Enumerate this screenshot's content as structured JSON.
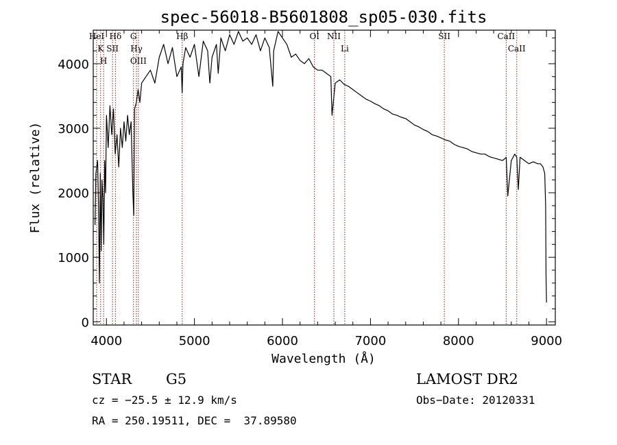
{
  "chart_data": {
    "type": "line",
    "title": "spec-56018-B5601808_sp05-030.fits",
    "xlabel": "Wavelength (Å)",
    "ylabel": "Flux (relative)",
    "xlim": [
      3850,
      9100
    ],
    "ylim": [
      -50,
      4520
    ],
    "x_ticks": [
      4000,
      5000,
      6000,
      7000,
      8000,
      9000
    ],
    "y_ticks": [
      0,
      1000,
      2000,
      3000,
      4000
    ],
    "grid": false,
    "series": [
      {
        "x": [
          3870,
          3880,
          3890,
          3900,
          3910,
          3920,
          3930,
          3940,
          3950,
          3960,
          3970,
          3980,
          3990,
          4000,
          4020,
          4040,
          4060,
          4080,
          4100,
          4120,
          4140,
          4160,
          4180,
          4200,
          4220,
          4240,
          4260,
          4280,
          4300,
          4310,
          4320,
          4340,
          4360,
          4380,
          4400,
          4450,
          4500,
          4550,
          4600,
          4650,
          4700,
          4750,
          4800,
          4850,
          4860,
          4870,
          4900,
          4950,
          5000,
          5050,
          5100,
          5150,
          5175,
          5200,
          5250,
          5270,
          5300,
          5350,
          5400,
          5450,
          5500,
          5550,
          5600,
          5650,
          5700,
          5750,
          5800,
          5850,
          5890,
          5900,
          5950,
          6000,
          6050,
          6100,
          6150,
          6200,
          6250,
          6300,
          6350,
          6400,
          6450,
          6500,
          6550,
          6563,
          6600,
          6650,
          6700,
          6750,
          6800,
          6850,
          6900,
          6950,
          7000,
          7050,
          7100,
          7150,
          7200,
          7250,
          7300,
          7350,
          7400,
          7450,
          7500,
          7550,
          7600,
          7650,
          7700,
          7750,
          7800,
          7850,
          7900,
          7950,
          8000,
          8050,
          8100,
          8150,
          8200,
          8250,
          8300,
          8350,
          8400,
          8450,
          8498,
          8520,
          8542,
          8560,
          8600,
          8640,
          8662,
          8680,
          8700,
          8750,
          8800,
          8850,
          8900,
          8930,
          8960,
          8980,
          8990,
          8995,
          9000
        ],
        "y": [
          1500,
          2300,
          2400,
          2500,
          1800,
          600,
          2300,
          1100,
          2200,
          1900,
          1200,
          2500,
          2000,
          3200,
          2700,
          3350,
          2900,
          3300,
          2600,
          2900,
          2400,
          3000,
          2700,
          3100,
          2800,
          3200,
          2900,
          3100,
          2000,
          1650,
          3300,
          3400,
          3600,
          3400,
          3700,
          3800,
          3900,
          3700,
          4100,
          4300,
          4000,
          4250,
          3800,
          3950,
          3550,
          4000,
          4250,
          4100,
          4300,
          3800,
          4350,
          4200,
          3700,
          4100,
          4300,
          3850,
          4400,
          4200,
          4450,
          4300,
          4500,
          4350,
          4400,
          4300,
          4450,
          4200,
          4400,
          4250,
          3650,
          4200,
          4500,
          4400,
          4300,
          4100,
          4150,
          4050,
          4000,
          4080,
          3950,
          3900,
          3900,
          3850,
          3800,
          3200,
          3700,
          3750,
          3680,
          3650,
          3600,
          3550,
          3500,
          3450,
          3420,
          3380,
          3350,
          3300,
          3270,
          3220,
          3200,
          3170,
          3150,
          3100,
          3050,
          3020,
          2980,
          2950,
          2900,
          2880,
          2850,
          2820,
          2800,
          2750,
          2720,
          2700,
          2680,
          2640,
          2620,
          2600,
          2600,
          2560,
          2540,
          2520,
          2500,
          2520,
          2550,
          1950,
          2500,
          2600,
          2550,
          2050,
          2550,
          2500,
          2450,
          2480,
          2450,
          2450,
          2400,
          2300,
          1800,
          700,
          300
        ]
      }
    ],
    "line_markers": [
      {
        "label": "HeI",
        "x": 3889
      },
      {
        "label": "K",
        "x": 3934
      },
      {
        "label": "H",
        "x": 3968
      },
      {
        "label": "SII",
        "x": 4069
      },
      {
        "label": "Hδ",
        "x": 4102
      },
      {
        "label": "G",
        "x": 4307
      },
      {
        "label": "Hγ",
        "x": 4341
      },
      {
        "label": "OIII",
        "x": 4363
      },
      {
        "label": "Hβ",
        "x": 4861
      },
      {
        "label": "OI",
        "x": 6364
      },
      {
        "label": "NII",
        "x": 6584
      },
      {
        "label": "Li",
        "x": 6708
      },
      {
        "label": "SII",
        "x": 7839
      },
      {
        "label": "CaII",
        "x": 8542
      },
      {
        "label": "CaII",
        "x": 8662
      }
    ]
  },
  "info": {
    "object_class": "STAR",
    "subclass": "G5",
    "survey": "LAMOST DR2",
    "cz": "cz = −25.5 ± 12.9 km/s",
    "obs_date": "Obs−Date: 20120331",
    "coords": "RA = 250.19511, DEC =  37.89580"
  },
  "colors": {
    "spectrum": "#000000",
    "line_marker": "#8b1a1a",
    "axes": "#000000"
  }
}
